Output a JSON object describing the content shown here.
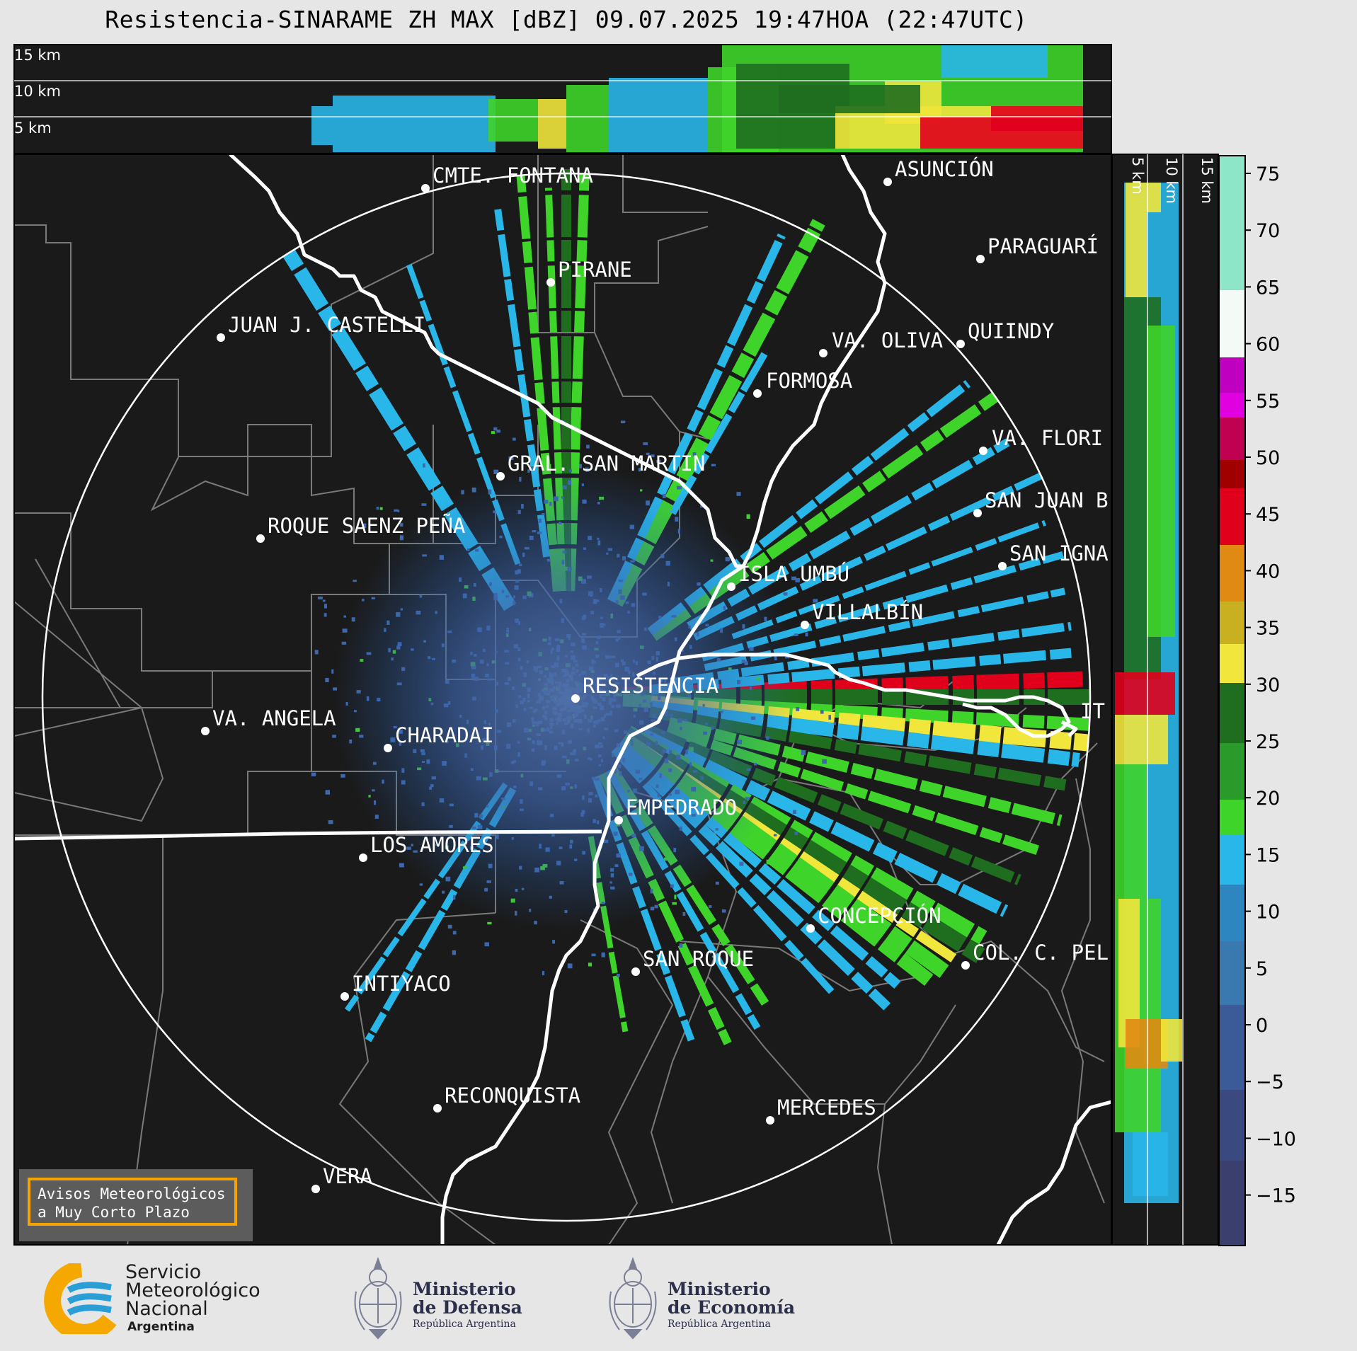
{
  "header": {
    "title": "Resistencia-SINARAME ZH MAX [dBZ] 09.07.2025 19:47HOA (22:47UTC)"
  },
  "top_panel": {
    "height_labels": [
      "15 km",
      "10 km",
      "5 km"
    ]
  },
  "side_panel": {
    "height_labels": [
      "5 km",
      "10 km",
      "15 km"
    ]
  },
  "map": {
    "cities": [
      {
        "name": "CMTE. FONTANA"
      },
      {
        "name": "ASUNCIÓN"
      },
      {
        "name": "PIRANE"
      },
      {
        "name": "PARAGUARÍ"
      },
      {
        "name": "JUAN J. CASTELLI"
      },
      {
        "name": "QUIINDY"
      },
      {
        "name": "VA. OLIVA"
      },
      {
        "name": "FORMOSA"
      },
      {
        "name": "VA. FLORI"
      },
      {
        "name": "GRAL. SAN MARTIN"
      },
      {
        "name": "SAN JUAN B"
      },
      {
        "name": "ROQUE SAENZ PEÑA"
      },
      {
        "name": "SAN IGNA"
      },
      {
        "name": "ISLA UMBÚ"
      },
      {
        "name": "VILLALBÍN"
      },
      {
        "name": "RESISTENCIA"
      },
      {
        "name": "VA. ANGELA"
      },
      {
        "name": "CHARADAI"
      },
      {
        "name": "IT"
      },
      {
        "name": "EMPEDRADO"
      },
      {
        "name": "LOS AMORES"
      },
      {
        "name": "CONCEPCIÓN"
      },
      {
        "name": "SAN ROQUE"
      },
      {
        "name": "COL. C. PEL"
      },
      {
        "name": "INTIYACO"
      },
      {
        "name": "RECONQUISTA"
      },
      {
        "name": "MERCEDES"
      },
      {
        "name": "VERA"
      }
    ]
  },
  "colorbar": {
    "ticks": [
      "75",
      "70",
      "65",
      "60",
      "55",
      "50",
      "45",
      "40",
      "35",
      "30",
      "25",
      "20",
      "15",
      "10",
      "5",
      "0",
      "−5",
      "−10",
      "−15"
    ],
    "colors": {
      "dbz_low": "#3b3f6e",
      "dbz_mid_blue": "#2e86c1",
      "dbz_cyan": "#29b6e8",
      "dbz_green": "#3fd42a",
      "dbz_dark_green": "#1f6e1f",
      "dbz_yellow": "#f0e63c",
      "dbz_orange": "#e08a14",
      "dbz_red": "#e0001c",
      "dbz_magenta": "#e000e0",
      "dbz_aqua": "#8ee6c8"
    }
  },
  "notice": {
    "line1": "Avisos Meteorológicos",
    "line2": "a Muy Corto Plazo"
  },
  "footer": {
    "smn": {
      "line1": "Servicio",
      "line2": "Meteorológico",
      "line3": "Nacional",
      "line4": "Argentina"
    },
    "defensa": {
      "line1": "Ministerio",
      "line2": "de Defensa",
      "line3": "República Argentina"
    },
    "economia": {
      "line1": "Ministerio",
      "line2": "de Economía",
      "line3": "República Argentina"
    }
  }
}
